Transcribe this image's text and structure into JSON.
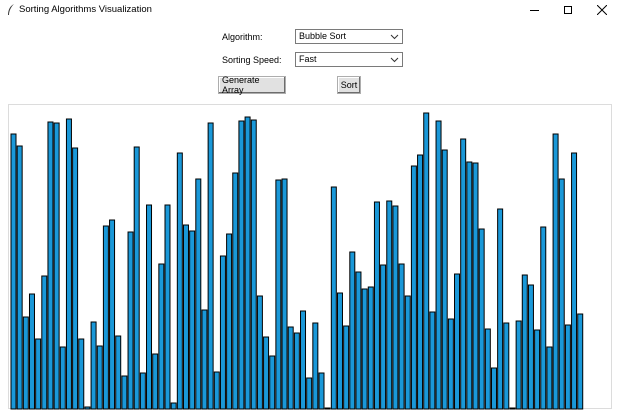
{
  "window": {
    "title": "Sorting Algorithms Visualization",
    "controls": [
      "minimize",
      "maximize",
      "close"
    ]
  },
  "controls": {
    "algorithm_label": "Algorithm:",
    "algorithm_value": "Bubble Sort",
    "speed_label": "Sorting Speed:",
    "speed_value": "Fast",
    "generate_label": "Generate Array",
    "sort_label": "Sort"
  },
  "colors": {
    "bar_fill": "#1a98d8",
    "bar_stroke": "#000000"
  },
  "array": {
    "values": [
      275,
      263,
      92,
      115,
      70,
      133,
      287,
      286,
      62,
      290,
      261,
      70,
      2,
      87,
      63,
      183,
      189,
      73,
      33,
      177,
      262,
      36,
      204,
      55,
      145,
      204,
      6,
      256,
      184,
      178,
      230,
      99,
      286,
      37,
      153,
      175,
      236,
      288,
      292,
      289,
      113,
      72,
      53,
      229,
      230,
      82,
      76,
      98,
      31,
      86,
      36,
      0,
      222,
      116,
      83,
      157,
      137,
      120,
      122,
      207,
      144,
      208,
      203,
      145,
      113,
      243,
      254,
      296,
      97,
      288,
      259,
      90,
      135,
      270,
      247,
      246,
      180,
      80,
      41,
      200,
      86,
      0,
      88,
      134,
      124,
      79,
      182,
      62,
      275,
      230,
      84,
      256,
      95
    ]
  }
}
